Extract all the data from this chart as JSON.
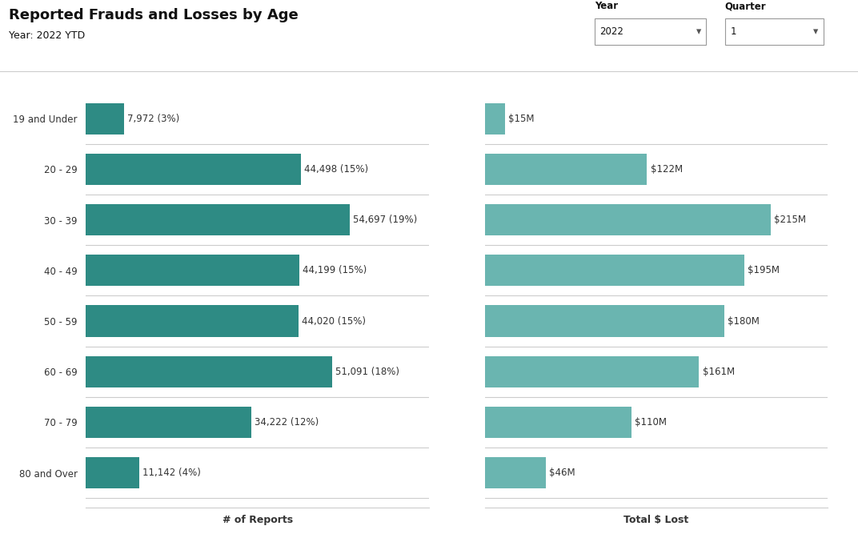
{
  "title": "Reported Frauds and Losses by Age",
  "subtitle": "Year: 2022 YTD",
  "age_groups": [
    "19 and Under",
    "20 - 29",
    "30 - 39",
    "40 - 49",
    "50 - 59",
    "60 - 69",
    "70 - 79",
    "80 and Over"
  ],
  "reports": [
    7972,
    44498,
    54697,
    44199,
    44020,
    51091,
    34222,
    11142
  ],
  "report_labels": [
    "7,972 (3%)",
    "44,498 (15%)",
    "54,697 (19%)",
    "44,199 (15%)",
    "44,020 (15%)",
    "51,091 (18%)",
    "34,222 (12%)",
    "11,142 (4%)"
  ],
  "losses": [
    15,
    122,
    215,
    195,
    180,
    161,
    110,
    46
  ],
  "loss_labels": [
    "$15M",
    "$122M",
    "$215M",
    "$195M",
    "$180M",
    "$161M",
    "$110M",
    "$46M"
  ],
  "left_bar_color": "#2e8b84",
  "right_bar_color": "#6ab5b0",
  "xlabel_left": "# of Reports",
  "xlabel_right": "Total $ Lost",
  "year_label": "Year",
  "year_value": "2022",
  "quarter_label": "Quarter",
  "quarter_value": "1",
  "background_color": "#ffffff",
  "title_fontsize": 13,
  "subtitle_fontsize": 9,
  "label_fontsize": 8.5,
  "axis_label_fontsize": 9,
  "bar_height": 0.62,
  "separator_color": "#cccccc",
  "text_color": "#333333",
  "grid_color": "#e0e0e0"
}
